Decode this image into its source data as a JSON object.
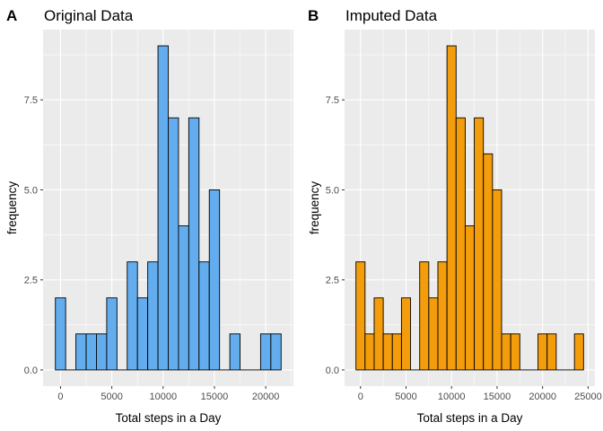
{
  "colors": {
    "panel_bg": "#EBEBEB",
    "grid_major": "#FFFFFF",
    "bar_outline": "#000000",
    "tick_text": "#4D4D4D"
  },
  "chart_data": [
    {
      "type": "bar",
      "tag": "A",
      "title": "Original Data",
      "xlabel": "Total steps in a Day",
      "ylabel": "frequency",
      "fill": "#63ADEE",
      "bin_width": 1000,
      "bin_centers": [
        0,
        1000,
        2000,
        3000,
        4000,
        5000,
        6000,
        7000,
        8000,
        9000,
        10000,
        11000,
        12000,
        13000,
        14000,
        15000,
        16000,
        17000,
        18000,
        19000,
        20000,
        21000
      ],
      "values": [
        2,
        0,
        1,
        1,
        1,
        2,
        0,
        3,
        2,
        3,
        9,
        7,
        4,
        7,
        3,
        5,
        0,
        1,
        0,
        0,
        1,
        1
      ],
      "xlim": [
        -1700,
        22700
      ],
      "ylim": [
        -0.45,
        9.45
      ],
      "x_ticks": [
        0,
        5000,
        10000,
        15000,
        20000
      ],
      "x_tick_labels": [
        "0",
        "5000",
        "10000",
        "15000",
        "20000"
      ],
      "y_ticks": [
        0,
        2.5,
        5,
        7.5
      ],
      "y_tick_labels": [
        "0.0",
        "2.5",
        "5.0",
        "7.5"
      ],
      "grid": true
    },
    {
      "type": "bar",
      "tag": "B",
      "title": "Imputed Data",
      "xlabel": "Total steps in a Day",
      "ylabel": "frequency",
      "fill": "#F39C0C",
      "bin_width": 1000,
      "bin_centers": [
        0,
        1000,
        2000,
        3000,
        4000,
        5000,
        6000,
        7000,
        8000,
        9000,
        10000,
        11000,
        12000,
        13000,
        14000,
        15000,
        16000,
        17000,
        18000,
        19000,
        20000,
        21000,
        22000,
        23000,
        24000
      ],
      "values": [
        3,
        1,
        2,
        1,
        1,
        2,
        0,
        3,
        2,
        3,
        9,
        7,
        4,
        7,
        6,
        5,
        1,
        1,
        0,
        0,
        1,
        1,
        0,
        0,
        1
      ],
      "xlim": [
        -1750,
        25750
      ],
      "ylim": [
        -0.45,
        9.45
      ],
      "x_ticks": [
        0,
        5000,
        10000,
        15000,
        20000,
        25000
      ],
      "x_tick_labels": [
        "0",
        "5000",
        "10000",
        "15000",
        "20000",
        "25000"
      ],
      "y_ticks": [
        0,
        2.5,
        5,
        7.5
      ],
      "y_tick_labels": [
        "0.0",
        "2.5",
        "5.0",
        "7.5"
      ],
      "grid": true
    }
  ]
}
